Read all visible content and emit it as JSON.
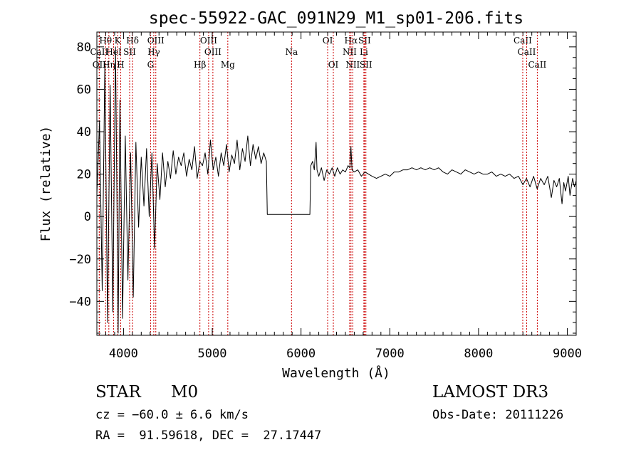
{
  "chart_data": {
    "type": "line",
    "title": "spec-55922-GAC_091N29_M1_sp01-206.fits",
    "xlabel": "Wavelength (Å)",
    "ylabel": "Flux (relative)",
    "xlim": [
      3700,
      9100
    ],
    "ylim": [
      -56,
      87
    ],
    "x_ticks": [
      4000,
      5000,
      6000,
      7000,
      8000,
      9000
    ],
    "y_ticks": [
      -40,
      -20,
      0,
      20,
      40,
      60,
      80
    ],
    "y_tick_labels": [
      "−40",
      "−20",
      "0",
      "20",
      "40",
      "60",
      "80"
    ],
    "grid": false,
    "series": [
      {
        "name": "flux",
        "points": [
          [
            3700,
            10
          ],
          [
            3730,
            45
          ],
          [
            3760,
            -35
          ],
          [
            3790,
            72
          ],
          [
            3820,
            -50
          ],
          [
            3850,
            62
          ],
          [
            3880,
            -45
          ],
          [
            3910,
            80
          ],
          [
            3940,
            -55
          ],
          [
            3960,
            55
          ],
          [
            3990,
            -48
          ],
          [
            4020,
            38
          ],
          [
            4050,
            -30
          ],
          [
            4080,
            30
          ],
          [
            4110,
            -38
          ],
          [
            4140,
            35
          ],
          [
            4170,
            -5
          ],
          [
            4200,
            28
          ],
          [
            4230,
            5
          ],
          [
            4260,
            32
          ],
          [
            4290,
            0
          ],
          [
            4320,
            30
          ],
          [
            4350,
            -15
          ],
          [
            4380,
            25
          ],
          [
            4410,
            8
          ],
          [
            4440,
            30
          ],
          [
            4470,
            14
          ],
          [
            4500,
            26
          ],
          [
            4530,
            18
          ],
          [
            4560,
            31
          ],
          [
            4590,
            20
          ],
          [
            4620,
            28
          ],
          [
            4650,
            24
          ],
          [
            4680,
            30
          ],
          [
            4710,
            19
          ],
          [
            4740,
            27
          ],
          [
            4770,
            22
          ],
          [
            4800,
            33
          ],
          [
            4830,
            18
          ],
          [
            4860,
            26
          ],
          [
            4890,
            24
          ],
          [
            4920,
            30
          ],
          [
            4950,
            20
          ],
          [
            4980,
            36
          ],
          [
            5010,
            22
          ],
          [
            5040,
            28
          ],
          [
            5070,
            19
          ],
          [
            5100,
            30
          ],
          [
            5130,
            24
          ],
          [
            5160,
            34
          ],
          [
            5190,
            21
          ],
          [
            5220,
            29
          ],
          [
            5250,
            25
          ],
          [
            5280,
            36
          ],
          [
            5310,
            22
          ],
          [
            5340,
            32
          ],
          [
            5370,
            26
          ],
          [
            5400,
            38
          ],
          [
            5430,
            24
          ],
          [
            5460,
            34
          ],
          [
            5490,
            27
          ],
          [
            5520,
            33
          ],
          [
            5550,
            25
          ],
          [
            5580,
            30
          ],
          [
            5610,
            26
          ],
          [
            5620,
            1
          ],
          [
            5700,
            1
          ],
          [
            5800,
            1
          ],
          [
            5900,
            1
          ],
          [
            6000,
            1
          ],
          [
            6100,
            1
          ],
          [
            6110,
            24
          ],
          [
            6130,
            26
          ],
          [
            6150,
            22
          ],
          [
            6170,
            35
          ],
          [
            6180,
            22
          ],
          [
            6200,
            19
          ],
          [
            6230,
            23
          ],
          [
            6260,
            17
          ],
          [
            6290,
            22
          ],
          [
            6320,
            20
          ],
          [
            6350,
            23
          ],
          [
            6380,
            19
          ],
          [
            6410,
            23
          ],
          [
            6440,
            20
          ],
          [
            6470,
            22
          ],
          [
            6500,
            21
          ],
          [
            6530,
            24
          ],
          [
            6550,
            23
          ],
          [
            6562,
            33
          ],
          [
            6575,
            22
          ],
          [
            6600,
            21
          ],
          [
            6640,
            22
          ],
          [
            6680,
            19
          ],
          [
            6720,
            21
          ],
          [
            6760,
            20
          ],
          [
            6800,
            19
          ],
          [
            6850,
            18
          ],
          [
            6900,
            19
          ],
          [
            6950,
            20
          ],
          [
            7000,
            19
          ],
          [
            7050,
            21
          ],
          [
            7100,
            21
          ],
          [
            7150,
            22
          ],
          [
            7200,
            22
          ],
          [
            7250,
            23
          ],
          [
            7300,
            22
          ],
          [
            7350,
            23
          ],
          [
            7400,
            22
          ],
          [
            7450,
            23
          ],
          [
            7500,
            22
          ],
          [
            7550,
            23
          ],
          [
            7600,
            21
          ],
          [
            7650,
            20
          ],
          [
            7700,
            22
          ],
          [
            7750,
            21
          ],
          [
            7800,
            20
          ],
          [
            7850,
            22
          ],
          [
            7900,
            21
          ],
          [
            7950,
            20
          ],
          [
            8000,
            21
          ],
          [
            8050,
            20
          ],
          [
            8100,
            20
          ],
          [
            8150,
            21
          ],
          [
            8200,
            19
          ],
          [
            8250,
            20
          ],
          [
            8300,
            19
          ],
          [
            8350,
            20
          ],
          [
            8400,
            18
          ],
          [
            8450,
            19
          ],
          [
            8500,
            15
          ],
          [
            8540,
            18
          ],
          [
            8580,
            14
          ],
          [
            8620,
            19
          ],
          [
            8660,
            13
          ],
          [
            8700,
            18
          ],
          [
            8740,
            15
          ],
          [
            8780,
            19
          ],
          [
            8820,
            9
          ],
          [
            8850,
            17
          ],
          [
            8880,
            14
          ],
          [
            8910,
            18
          ],
          [
            8940,
            6
          ],
          [
            8960,
            16
          ],
          [
            8980,
            12
          ],
          [
            9010,
            19
          ],
          [
            9030,
            10
          ],
          [
            9060,
            18
          ],
          [
            9080,
            14
          ],
          [
            9100,
            17
          ]
        ]
      }
    ],
    "line_markers": [
      {
        "label": "Hθ",
        "x": 3798,
        "row": 1
      },
      {
        "label": "OII",
        "x": 3727,
        "row": 3
      },
      {
        "label": "Hη",
        "x": 3835,
        "row": 3
      },
      {
        "label": "CaII",
        "x": 3727,
        "row": 2
      },
      {
        "label": "HeI",
        "x": 3889,
        "row": 2
      },
      {
        "label": "K",
        "x": 3934,
        "row": 1
      },
      {
        "label": "H",
        "x": 3969,
        "row": 3
      },
      {
        "label": "SII",
        "x": 4069,
        "row": 2
      },
      {
        "label": "Hδ",
        "x": 4102,
        "row": 1
      },
      {
        "label": "OIII",
        "x": 4364,
        "row": 1
      },
      {
        "label": "Hγ",
        "x": 4341,
        "row": 2
      },
      {
        "label": "G",
        "x": 4305,
        "row": 3
      },
      {
        "label": "OIII",
        "x": 4959,
        "row": 1
      },
      {
        "label": "OIII",
        "x": 5007,
        "row": 2
      },
      {
        "label": "Hβ",
        "x": 4861,
        "row": 3
      },
      {
        "label": "Mg",
        "x": 5175,
        "row": 3
      },
      {
        "label": "Na",
        "x": 5893,
        "row": 2
      },
      {
        "label": "OI",
        "x": 6300,
        "row": 1
      },
      {
        "label": "OI",
        "x": 6364,
        "row": 3
      },
      {
        "label": "Hα",
        "x": 6563,
        "row": 1
      },
      {
        "label": "SII",
        "x": 6716,
        "row": 1
      },
      {
        "label": "NII",
        "x": 6548,
        "row": 2
      },
      {
        "label": "Li",
        "x": 6708,
        "row": 2
      },
      {
        "label": "NII",
        "x": 6583,
        "row": 3
      },
      {
        "label": "SII",
        "x": 6731,
        "row": 3
      },
      {
        "label": "CaII",
        "x": 8498,
        "row": 1
      },
      {
        "label": "CaII",
        "x": 8542,
        "row": 2
      },
      {
        "label": "CaII",
        "x": 8662,
        "row": 3
      }
    ]
  },
  "info": {
    "object_class": "STAR",
    "subclass": "M0",
    "survey": "LAMOST DR3",
    "velocity": "cz = −60.0 ± 6.6 km/s",
    "obs_date": "Obs-Date: 20111226",
    "coords": "RA =  91.59618, DEC =  27.17447"
  },
  "colors": {
    "line": "#000000",
    "marker": "#cc0000",
    "background": "#ffffff"
  }
}
